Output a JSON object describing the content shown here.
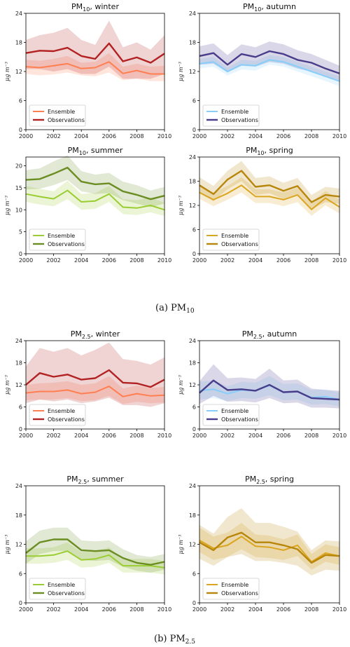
{
  "figure": {
    "caption_a": "(a) PM",
    "caption_a_sub": "10",
    "caption_b": "(b) PM",
    "caption_b_sub": "2.5"
  },
  "chart_data": [
    {
      "type": "line",
      "title_main": "PM",
      "title_sub": "10",
      "title_rest": ", winter",
      "ylabel": "μg m⁻³",
      "x": [
        2000,
        2001,
        2002,
        2003,
        2004,
        2005,
        2006,
        2007,
        2008,
        2009,
        2010
      ],
      "xticks": [
        "2000",
        "2002",
        "2004",
        "2006",
        "2008",
        "2010"
      ],
      "yticks": [
        "0",
        "6",
        "12",
        "18",
        "24"
      ],
      "ylim": [
        0,
        24
      ],
      "legend": "bottom-left",
      "series": [
        {
          "name": "Ensemble",
          "color": "#ff7f50",
          "lw": 2.0,
          "values": [
            13.0,
            12.8,
            13.2,
            13.6,
            12.6,
            12.8,
            14.0,
            11.6,
            12.2,
            11.5,
            11.5
          ],
          "lower": [
            11.5,
            11.2,
            11.4,
            11.8,
            11.2,
            11.0,
            11.8,
            10.2,
            10.6,
            10.0,
            10.0
          ],
          "upper": [
            14.4,
            14.2,
            14.6,
            15.2,
            13.8,
            14.0,
            15.8,
            13.0,
            13.6,
            13.0,
            13.2
          ]
        },
        {
          "name": "Observations",
          "color": "#b22222",
          "lw": 2.4,
          "values": [
            15.8,
            16.3,
            16.2,
            16.9,
            15.2,
            14.6,
            17.8,
            14.1,
            14.9,
            13.8,
            15.7
          ],
          "lower": [
            12.5,
            12.5,
            12.0,
            12.5,
            11.5,
            11.5,
            13.0,
            10.5,
            10.5,
            10.5,
            11.5
          ],
          "upper": [
            18.5,
            19.5,
            20.0,
            21.0,
            18.5,
            17.5,
            22.5,
            17.0,
            18.0,
            16.5,
            19.5
          ]
        }
      ]
    },
    {
      "type": "line",
      "title_main": "PM",
      "title_sub": "10",
      "title_rest": ", autumn",
      "ylabel": "μg m⁻³",
      "x": [
        2000,
        2001,
        2002,
        2003,
        2004,
        2005,
        2006,
        2007,
        2008,
        2009,
        2010
      ],
      "xticks": [
        "2000",
        "2002",
        "2004",
        "2006",
        "2008",
        "2010"
      ],
      "yticks": [
        "0",
        "6",
        "12",
        "18",
        "24"
      ],
      "ylim": [
        0,
        24
      ],
      "legend": "bottom-left",
      "series": [
        {
          "name": "Ensemble",
          "color": "#87cefa",
          "lw": 2.0,
          "values": [
            13.6,
            14.0,
            12.0,
            13.4,
            13.2,
            14.4,
            14.0,
            13.0,
            12.0,
            11.0,
            10.0
          ],
          "lower": [
            12.6,
            13.0,
            11.2,
            12.4,
            12.2,
            13.4,
            13.0,
            12.0,
            11.0,
            10.0,
            9.0
          ],
          "upper": [
            14.6,
            15.0,
            12.8,
            14.4,
            14.2,
            15.4,
            15.0,
            14.0,
            13.0,
            12.0,
            11.0
          ]
        },
        {
          "name": "Observations",
          "color": "#483d8b",
          "lw": 2.4,
          "values": [
            15.2,
            15.8,
            13.4,
            15.6,
            15.0,
            16.2,
            15.6,
            14.4,
            13.8,
            12.6,
            11.6
          ],
          "lower": [
            13.4,
            13.6,
            11.8,
            13.2,
            13.0,
            14.0,
            13.6,
            12.6,
            12.0,
            11.0,
            10.2
          ],
          "upper": [
            17.2,
            17.8,
            15.4,
            17.6,
            17.0,
            18.2,
            17.6,
            16.4,
            15.6,
            14.4,
            13.2
          ]
        }
      ]
    },
    {
      "type": "line",
      "title_main": "PM",
      "title_sub": "10",
      "title_rest": ", summer",
      "ylabel": "μg m⁻³",
      "x": [
        2000,
        2001,
        2002,
        2003,
        2004,
        2005,
        2006,
        2007,
        2008,
        2009,
        2010
      ],
      "xticks": [
        "2000",
        "2002",
        "2004",
        "2006",
        "2008",
        "2010"
      ],
      "yticks": [
        "0",
        "5",
        "10",
        "15",
        "20"
      ],
      "ylim": [
        0,
        22
      ],
      "legend": "bottom-left",
      "series": [
        {
          "name": "Ensemble",
          "color": "#9acd32",
          "lw": 2.0,
          "values": [
            13.6,
            13.0,
            12.5,
            14.4,
            11.8,
            12.0,
            13.6,
            10.6,
            10.4,
            11.0,
            10.0
          ],
          "lower": [
            11.8,
            11.2,
            10.8,
            12.4,
            10.0,
            10.2,
            11.8,
            9.0,
            8.8,
            9.4,
            8.6
          ],
          "upper": [
            15.4,
            14.8,
            14.2,
            16.6,
            13.6,
            13.8,
            15.4,
            12.4,
            12.2,
            12.8,
            11.6
          ]
        },
        {
          "name": "Observations",
          "color": "#6b8e23",
          "lw": 2.4,
          "values": [
            16.8,
            17.0,
            18.2,
            19.6,
            16.4,
            15.8,
            16.0,
            14.2,
            13.4,
            12.4,
            13.2
          ],
          "lower": [
            14.6,
            14.8,
            15.6,
            16.8,
            14.2,
            13.6,
            13.8,
            12.2,
            11.4,
            10.6,
            11.4
          ],
          "upper": [
            19.0,
            19.4,
            21.0,
            22.4,
            18.8,
            18.0,
            18.4,
            16.4,
            15.6,
            14.4,
            15.2
          ]
        }
      ]
    },
    {
      "type": "line",
      "title_main": "PM",
      "title_sub": "10",
      "title_rest": ", spring",
      "ylabel": "μg m⁻³",
      "x": [
        2000,
        2001,
        2002,
        2003,
        2004,
        2005,
        2006,
        2007,
        2008,
        2009,
        2010
      ],
      "xticks": [
        "2000",
        "2002",
        "2004",
        "2006",
        "2008",
        "2010"
      ],
      "yticks": [
        "0",
        "6",
        "12",
        "18",
        "24"
      ],
      "ylim": [
        0,
        24
      ],
      "legend": "bottom-left",
      "series": [
        {
          "name": "Ensemble",
          "color": "#daa520",
          "lw": 2.0,
          "values": [
            15.2,
            13.4,
            15.0,
            17.0,
            14.2,
            14.2,
            13.4,
            14.6,
            11.0,
            13.8,
            11.6
          ],
          "lower": [
            13.6,
            11.8,
            13.4,
            15.2,
            12.6,
            12.6,
            11.8,
            12.8,
            9.4,
            12.0,
            10.0
          ],
          "upper": [
            17.0,
            15.2,
            16.8,
            19.0,
            16.0,
            16.0,
            15.2,
            16.4,
            12.8,
            15.6,
            13.4
          ]
        },
        {
          "name": "Observations",
          "color": "#b8860b",
          "lw": 2.4,
          "values": [
            17.0,
            14.8,
            18.4,
            20.6,
            16.6,
            17.0,
            15.6,
            16.8,
            12.8,
            14.6,
            14.2
          ],
          "lower": [
            15.0,
            13.0,
            16.0,
            18.0,
            14.6,
            15.0,
            13.6,
            14.8,
            11.0,
            12.8,
            12.4
          ],
          "upper": [
            19.0,
            16.8,
            20.6,
            23.0,
            18.8,
            19.2,
            17.6,
            18.8,
            14.6,
            16.6,
            16.2
          ]
        }
      ]
    },
    {
      "type": "line",
      "title_main": "PM",
      "title_sub": "2.5",
      "title_rest": ", winter",
      "ylabel": "μg m⁻³",
      "x": [
        2000,
        2001,
        2002,
        2003,
        2004,
        2005,
        2006,
        2007,
        2008,
        2009,
        2010
      ],
      "xticks": [
        "2000",
        "2002",
        "2004",
        "2006",
        "2008",
        "2010"
      ],
      "yticks": [
        "0",
        "6",
        "12",
        "18",
        "24"
      ],
      "ylim": [
        0,
        24
      ],
      "legend": "bottom-left",
      "series": [
        {
          "name": "Ensemble",
          "color": "#ff7f50",
          "lw": 2.0,
          "values": [
            9.8,
            10.2,
            10.2,
            10.6,
            9.6,
            10.0,
            11.6,
            8.8,
            9.6,
            9.0,
            9.2
          ],
          "lower": [
            7.8,
            8.0,
            8.0,
            8.4,
            7.6,
            7.8,
            9.0,
            6.8,
            7.4,
            7.0,
            7.2
          ],
          "upper": [
            12.0,
            12.4,
            12.6,
            13.0,
            12.0,
            12.4,
            14.4,
            11.0,
            11.8,
            11.2,
            11.4
          ]
        },
        {
          "name": "Observations",
          "color": "#b22222",
          "lw": 2.4,
          "values": [
            12.0,
            15.2,
            14.2,
            14.8,
            13.4,
            13.8,
            16.0,
            12.6,
            12.4,
            11.4,
            13.4
          ],
          "lower": [
            7.0,
            8.0,
            7.5,
            8.0,
            7.0,
            7.5,
            8.5,
            6.5,
            6.5,
            6.0,
            7.0
          ],
          "upper": [
            17.0,
            22.0,
            21.0,
            22.0,
            20.0,
            21.5,
            23.5,
            19.0,
            18.5,
            17.5,
            19.5
          ]
        }
      ]
    },
    {
      "type": "line",
      "title_main": "PM",
      "title_sub": "2.5",
      "title_rest": ", autumn",
      "ylabel": "μg m⁻³",
      "x": [
        2000,
        2001,
        2002,
        2003,
        2004,
        2005,
        2006,
        2007,
        2008,
        2009,
        2010
      ],
      "xticks": [
        "2000",
        "2002",
        "2004",
        "2006",
        "2008",
        "2010"
      ],
      "yticks": [
        "0",
        "6",
        "12",
        "18",
        "24"
      ],
      "ylim": [
        0,
        24
      ],
      "legend": "bottom-left",
      "series": [
        {
          "name": "Ensemble",
          "color": "#87cefa",
          "lw": 2.0,
          "values": [
            10.4,
            10.8,
            9.6,
            10.6,
            10.4,
            11.8,
            10.0,
            10.2,
            8.6,
            8.8,
            8.0
          ],
          "lower": [
            8.0,
            8.4,
            7.6,
            8.4,
            8.2,
            9.2,
            7.8,
            8.0,
            6.6,
            6.8,
            6.2
          ],
          "upper": [
            12.8,
            13.2,
            11.6,
            12.8,
            12.6,
            14.4,
            12.2,
            12.4,
            10.6,
            10.8,
            9.8
          ]
        },
        {
          "name": "Observations",
          "color": "#483d8b",
          "lw": 2.4,
          "values": [
            9.8,
            13.2,
            10.6,
            10.8,
            10.4,
            12.0,
            10.0,
            10.2,
            8.4,
            8.2,
            8.0
          ],
          "lower": [
            6.8,
            9.0,
            7.4,
            7.6,
            7.2,
            8.4,
            7.0,
            7.2,
            5.8,
            5.8,
            5.6
          ],
          "upper": [
            13.0,
            17.6,
            13.8,
            14.0,
            13.6,
            16.4,
            13.2,
            13.4,
            11.0,
            10.6,
            10.4
          ]
        }
      ]
    },
    {
      "type": "line",
      "title_main": "PM",
      "title_sub": "2.5",
      "title_rest": ", summer",
      "ylabel": "μg m⁻³",
      "x": [
        2000,
        2001,
        2002,
        2003,
        2004,
        2005,
        2006,
        2007,
        2008,
        2009,
        2010
      ],
      "xticks": [
        "2000",
        "2002",
        "2004",
        "2006",
        "2008",
        "2010"
      ],
      "yticks": [
        "0",
        "6",
        "12",
        "18",
        "24"
      ],
      "ylim": [
        0,
        24
      ],
      "legend": "bottom-left",
      "series": [
        {
          "name": "Ensemble",
          "color": "#9acd32",
          "lw": 2.0,
          "values": [
            9.6,
            9.6,
            9.8,
            10.6,
            8.8,
            9.0,
            9.8,
            7.6,
            7.6,
            7.6,
            7.2
          ],
          "lower": [
            8.0,
            8.0,
            8.2,
            8.8,
            7.2,
            7.4,
            8.2,
            6.2,
            6.2,
            6.2,
            5.8
          ],
          "upper": [
            11.2,
            11.2,
            11.4,
            12.4,
            10.4,
            10.6,
            11.4,
            9.0,
            9.0,
            9.0,
            8.6
          ]
        },
        {
          "name": "Observations",
          "color": "#6b8e23",
          "lw": 2.4,
          "values": [
            10.2,
            12.4,
            13.0,
            13.0,
            10.8,
            10.6,
            10.8,
            9.2,
            8.2,
            7.8,
            8.4
          ],
          "lower": [
            8.0,
            10.0,
            10.6,
            10.6,
            8.8,
            8.6,
            8.8,
            7.4,
            6.6,
            6.2,
            6.8
          ],
          "upper": [
            12.6,
            14.8,
            15.4,
            15.4,
            12.8,
            12.6,
            12.8,
            11.0,
            9.8,
            9.4,
            10.0
          ]
        }
      ]
    },
    {
      "type": "line",
      "title_main": "PM",
      "title_sub": "2.5",
      "title_rest": ", spring",
      "ylabel": "μg m⁻³",
      "x": [
        2000,
        2001,
        2002,
        2003,
        2004,
        2005,
        2006,
        2007,
        2008,
        2009,
        2010
      ],
      "xticks": [
        "2000",
        "2002",
        "2004",
        "2006",
        "2008",
        "2010"
      ],
      "yticks": [
        "0",
        "6",
        "12",
        "18",
        "24"
      ],
      "ylim": [
        0,
        24
      ],
      "legend": "bottom-left",
      "series": [
        {
          "name": "Ensemble",
          "color": "#daa520",
          "lw": 2.0,
          "values": [
            12.8,
            11.2,
            11.8,
            13.6,
            11.6,
            11.4,
            10.8,
            11.8,
            8.4,
            10.2,
            9.6
          ],
          "lower": [
            10.4,
            8.8,
            9.4,
            11.0,
            9.4,
            9.2,
            8.8,
            9.6,
            6.8,
            8.4,
            7.8
          ],
          "upper": [
            15.4,
            13.6,
            14.4,
            16.4,
            14.0,
            13.8,
            13.0,
            14.0,
            10.0,
            12.0,
            11.4
          ]
        },
        {
          "name": "Observations",
          "color": "#b8860b",
          "lw": 2.4,
          "values": [
            12.4,
            10.8,
            13.4,
            14.4,
            12.4,
            12.4,
            11.8,
            11.0,
            8.2,
            9.8,
            9.6
          ],
          "lower": [
            9.0,
            7.6,
            9.4,
            10.0,
            8.6,
            8.6,
            8.2,
            7.6,
            5.6,
            6.8,
            6.6
          ],
          "upper": [
            16.0,
            14.2,
            17.6,
            19.4,
            16.4,
            16.4,
            15.6,
            14.6,
            10.8,
            12.8,
            12.6
          ]
        }
      ]
    }
  ]
}
